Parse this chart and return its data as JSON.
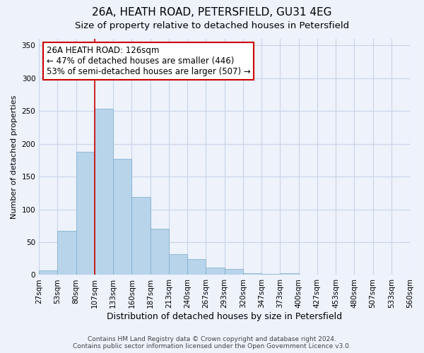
{
  "title": "26A, HEATH ROAD, PETERSFIELD, GU31 4EG",
  "subtitle": "Size of property relative to detached houses in Petersfield",
  "xlabel": "Distribution of detached houses by size in Petersfield",
  "ylabel": "Number of detached properties",
  "bar_values": [
    7,
    67,
    188,
    253,
    177,
    119,
    70,
    32,
    24,
    11,
    9,
    3,
    2,
    3,
    1,
    1,
    0,
    1,
    0,
    1
  ],
  "bar_labels": [
    "27sqm",
    "53sqm",
    "80sqm",
    "107sqm",
    "133sqm",
    "160sqm",
    "187sqm",
    "213sqm",
    "240sqm",
    "267sqm",
    "293sqm",
    "320sqm",
    "347sqm",
    "373sqm",
    "400sqm",
    "427sqm",
    "453sqm",
    "480sqm",
    "507sqm",
    "533sqm",
    "560sqm"
  ],
  "bar_color": "#b8d4ea",
  "bar_edge_color": "#7aabcc",
  "vline_x": 3,
  "vline_color": "#cc0000",
  "annotation_text": "26A HEATH ROAD: 126sqm\n← 47% of detached houses are smaller (446)\n53% of semi-detached houses are larger (507) →",
  "annotation_box_color": "#ffffff",
  "annotation_box_edge": "#cc0000",
  "ylim": [
    0,
    360
  ],
  "yticks": [
    0,
    50,
    100,
    150,
    200,
    250,
    300,
    350
  ],
  "background_color": "#edf2fb",
  "grid_color": "#c8d4e8",
  "footer_line1": "Contains HM Land Registry data © Crown copyright and database right 2024.",
  "footer_line2": "Contains public sector information licensed under the Open Government Licence v3.0.",
  "title_fontsize": 11,
  "subtitle_fontsize": 9.5,
  "xlabel_fontsize": 9,
  "ylabel_fontsize": 8,
  "tick_fontsize": 7.5,
  "annotation_fontsize": 8.5,
  "footer_fontsize": 6.5
}
